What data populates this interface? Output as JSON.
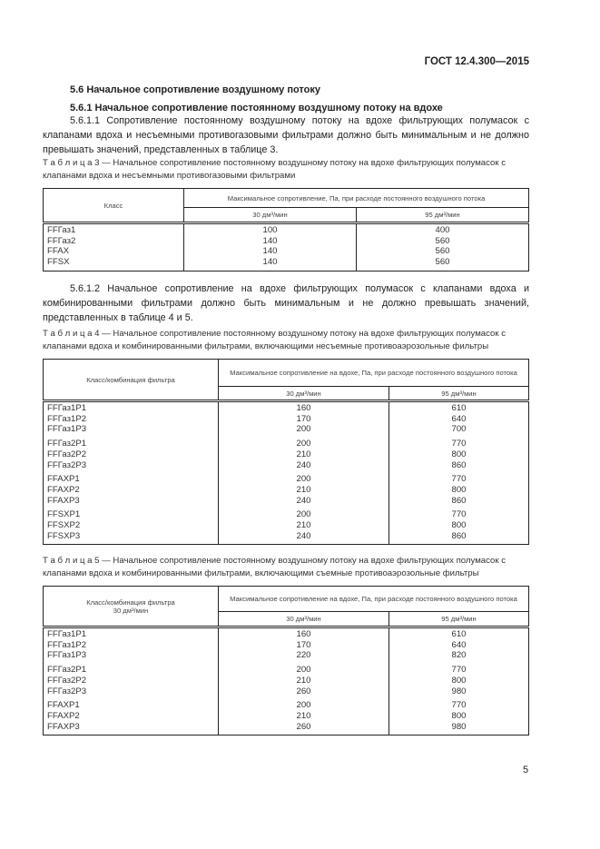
{
  "header": "ГОСТ 12.4.300—2015",
  "section": "5.6 Начальное сопротивление воздушному потоку",
  "subsection": "5.6.1 Начальное сопротивление постоянному воздушному потоку на вдохе",
  "para1": "5.6.1.1 Сопротивление постоянному воздушному потоку на вдохе фильтрующих полумасок с клапанами вдоха и несъемными противогазовыми фильтрами должно быть минимальным и не должно превышать значений, представленных в таблице 3.",
  "para2": "5.6.1.2 Начальное сопротивление на вдохе фильтрующих полумасок с клапанами вдоха и комбинированными фильтрами должно быть минимальным и не должно превышать значений, представленных в таблице 4 и 5.",
  "flow30": "30 дм³/мин",
  "flow95": "95 дм³/мин",
  "table3": {
    "caption": "Т а б л и ц а  3 — Начальное сопротивление постоянному воздушному потоку на вдохе фильтрующих полумасок с клапанами вдоха и несъемными противогазовыми фильтрами",
    "col1": "Класс",
    "colspan": "Максимальное сопротивление, Па, при расходе постоянного воздушного потока",
    "groups": [
      [
        [
          "FFГаз1",
          "100",
          "400"
        ],
        [
          "FFГаз2",
          "140",
          "560"
        ],
        [
          "FFAX",
          "140",
          "560"
        ],
        [
          "FFSX",
          "140",
          "560"
        ]
      ]
    ]
  },
  "table4": {
    "caption": "Т а б л и ц а 4 — Начальное сопротивление постоянному воздушному потоку на вдохе фильтрующих полумасок с клапанами вдоха и комбинированными фильтрами, включающими несъемные противоаэрозольные фильтры",
    "col1": "Класс/комбинация фильтра",
    "colspan": "Максимальное сопротивление на вдохе, Па, при расходе постоянного воздушного потока",
    "groups": [
      [
        [
          "FFГаз1P1",
          "160",
          "610"
        ],
        [
          "FFГаз1P2",
          "170",
          "640"
        ],
        [
          "FFГаз1P3",
          "200",
          "700"
        ]
      ],
      [
        [
          "FFГаз2P1",
          "200",
          "770"
        ],
        [
          "FFГаз2P2",
          "210",
          "800"
        ],
        [
          "FFГаз2P3",
          "240",
          "860"
        ]
      ],
      [
        [
          "FFAXP1",
          "200",
          "770"
        ],
        [
          "FFAXP2",
          "210",
          "800"
        ],
        [
          "FFAXP3",
          "240",
          "860"
        ]
      ],
      [
        [
          "FFSXP1",
          "200",
          "770"
        ],
        [
          "FFSXP2",
          "210",
          "800"
        ],
        [
          "FFSXP3",
          "240",
          "860"
        ]
      ]
    ]
  },
  "table5": {
    "caption": "Т а б л и ц а  5  — Начальное сопротивление постоянному воздушному потоку на вдохе фильтрующих полумасок с клапанами вдоха и комбинированными фильтрами, включающими съемные противоаэрозольные фильтры",
    "col1": "Класс/комбинация фильтра",
    "col1b": "30 дм³/мин",
    "colspan": "Максимальное сопротивление на вдохе, Па, при расходе постоянного воздушного потока",
    "groups": [
      [
        [
          "FFГаз1P1",
          "160",
          "610"
        ],
        [
          "FFГаз1P2",
          "170",
          "640"
        ],
        [
          "FFГаз1P3",
          "220",
          "820"
        ]
      ],
      [
        [
          "FFГаз2P1",
          "200",
          "770"
        ],
        [
          "FFГаз2P2",
          "210",
          "800"
        ],
        [
          "FFГаз2P3",
          "260",
          "980"
        ]
      ],
      [
        [
          "FFAXP1",
          "200",
          "770"
        ],
        [
          "FFAXP2",
          "210",
          "800"
        ],
        [
          "FFAXP3",
          "260",
          "980"
        ]
      ]
    ]
  },
  "page_number": "5"
}
